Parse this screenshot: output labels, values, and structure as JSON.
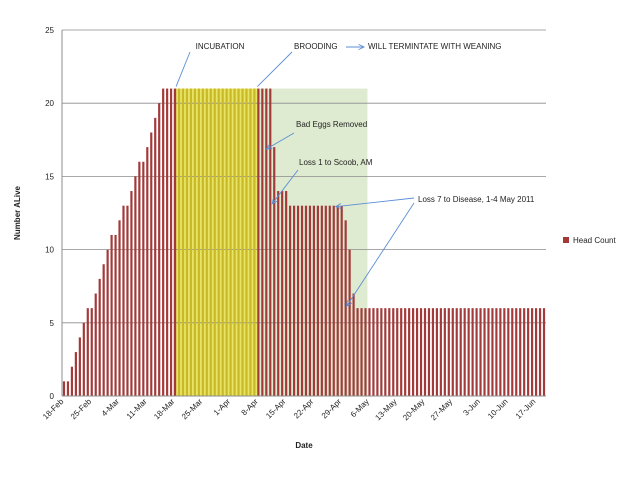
{
  "chart_data": {
    "type": "bar",
    "title": "",
    "xlabel": "Date",
    "ylabel": "Number ALive",
    "ylim": [
      0,
      25
    ],
    "y_ticks": [
      0,
      5,
      10,
      15,
      20,
      25
    ],
    "grid": "horizontal",
    "legend_position": "right",
    "x_tick_labels": [
      "18-Feb",
      "25-Feb",
      "4-Mar",
      "11-Mar",
      "18-Mar",
      "25-Mar",
      "1-Apr",
      "8-Apr",
      "15-Apr",
      "22-Apr",
      "29-Apr",
      "6-May",
      "13-May",
      "20-May",
      "27-May",
      "3-Jun",
      "10-Jun",
      "17-Jun"
    ],
    "start_date": "18-Feb",
    "series": [
      {
        "name": "Head Count",
        "color": "#a33a3a",
        "values": [
          1,
          1,
          2,
          3,
          4,
          5,
          6,
          6,
          7,
          8,
          9,
          10,
          11,
          11,
          12,
          13,
          13,
          14,
          15,
          16,
          16,
          17,
          18,
          19,
          20,
          21,
          21,
          21,
          21,
          21,
          21,
          21,
          21,
          21,
          21,
          21,
          21,
          21,
          21,
          21,
          21,
          21,
          21,
          21,
          21,
          21,
          21,
          21,
          21,
          21,
          21,
          21,
          21,
          17,
          14,
          14,
          14,
          13,
          13,
          13,
          13,
          13,
          13,
          13,
          13,
          13,
          13,
          13,
          13,
          13,
          13,
          12,
          10,
          7,
          6,
          6,
          6,
          6,
          6,
          6,
          6,
          6,
          6,
          6,
          6,
          6,
          6,
          6,
          6,
          6,
          6,
          6,
          6,
          6,
          6,
          6,
          6,
          6,
          6,
          6,
          6,
          6,
          6,
          6,
          6,
          6,
          6,
          6,
          6,
          6,
          6,
          6,
          6,
          6,
          6,
          6,
          6,
          6,
          6,
          6,
          6,
          6
        ]
      }
    ],
    "phases": [
      {
        "name": "incubation",
        "color": "#e4e04a",
        "bar_color": "#c8b82a",
        "x_start": "18-Mar",
        "x_end": "8-Apr"
      },
      {
        "name": "brooding",
        "color": "#d9e8c8",
        "x_start": "8-Apr",
        "x_end": "6-May"
      }
    ],
    "annotations": [
      {
        "text": "INCUBATION"
      },
      {
        "text": "BROODING"
      },
      {
        "text": "WILL TERMINTATE WITH WEANING"
      },
      {
        "text": "Bad Eggs Removed"
      },
      {
        "text": "Loss 1 to Scoob, AM"
      },
      {
        "text": "Loss 7 to Disease, 1-4 May 2011"
      }
    ]
  }
}
